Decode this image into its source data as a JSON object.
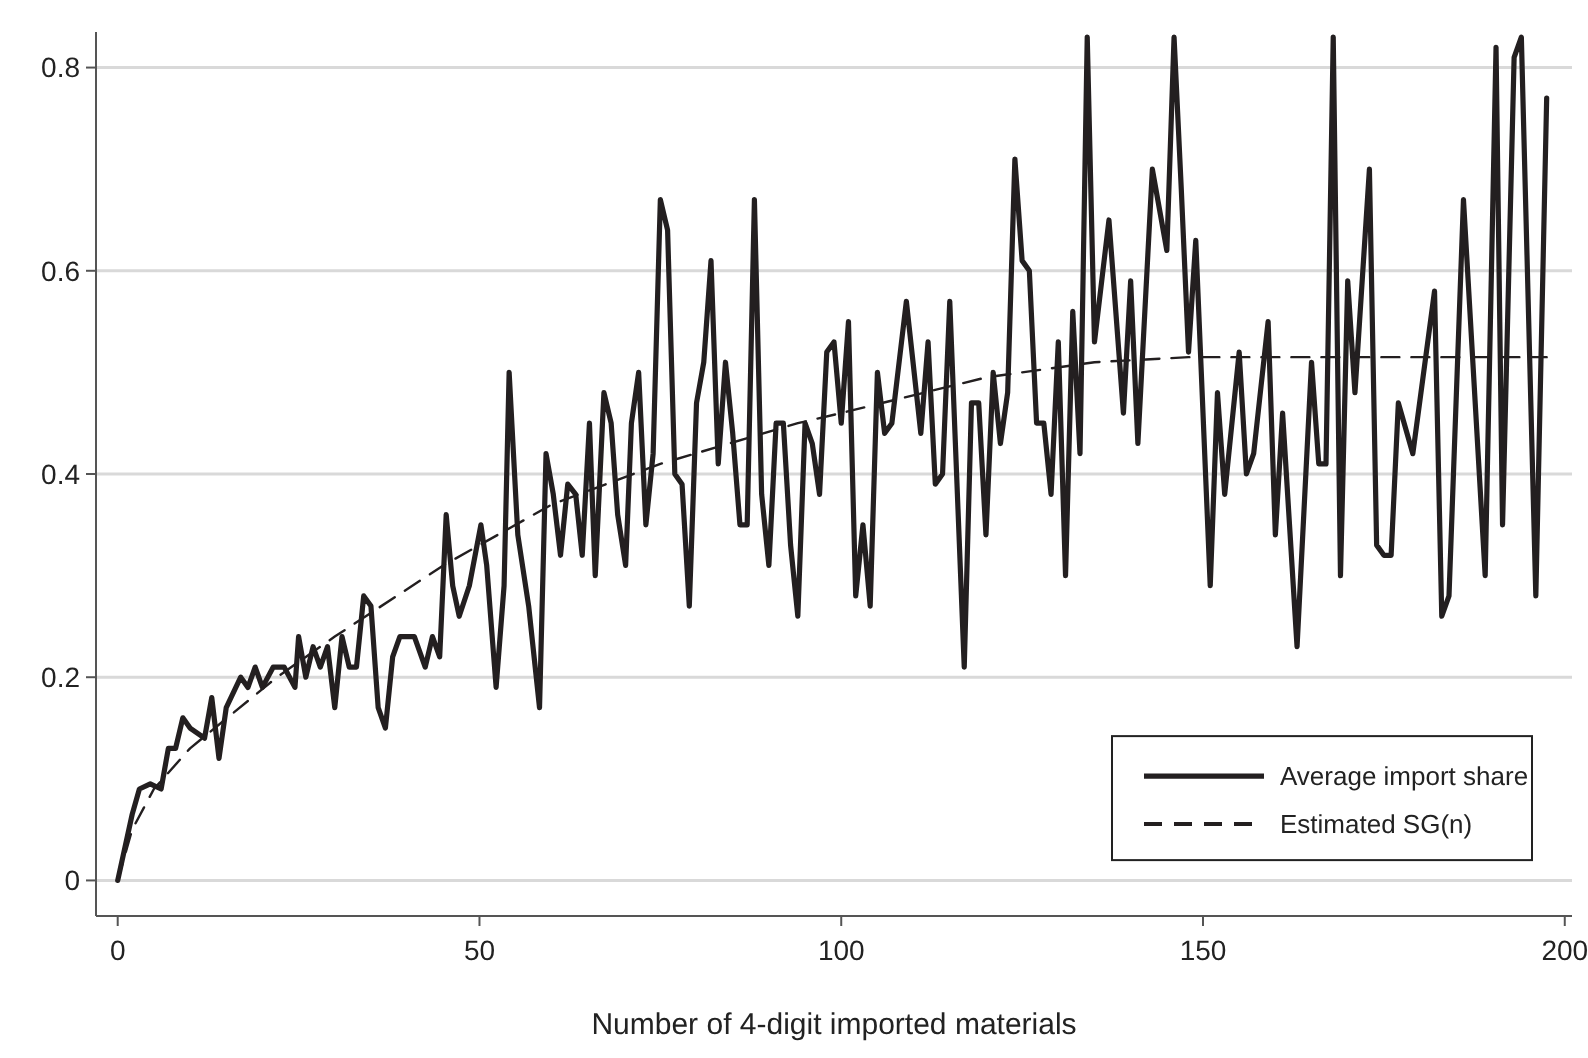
{
  "chart_data": {
    "type": "line",
    "xlabel": "Number of 4-digit imported materials",
    "xlim": [
      -3,
      201
    ],
    "xticks": [
      0,
      50,
      100,
      150,
      200
    ],
    "ylim": [
      -0.035,
      0.835
    ],
    "yticks": [
      0,
      0.2,
      0.4,
      0.6,
      0.8
    ],
    "grid": "y",
    "legend": "bottom right",
    "marker": "none",
    "series": [
      {
        "name": "Average import share",
        "color": "#231f20",
        "line_style": "solid",
        "x": [
          0,
          2,
          3,
          4.5,
          6,
          7,
          8,
          9,
          10,
          12,
          13,
          14,
          15,
          17,
          18,
          19,
          20,
          21.5,
          23,
          24.5,
          25,
          26,
          27,
          28,
          29,
          30,
          31,
          32,
          33,
          34,
          35,
          36,
          37,
          38,
          39,
          41,
          42.5,
          43.5,
          44.5,
          45.4,
          46.3,
          47.2,
          48.6,
          50.2,
          51,
          52.3,
          53.4,
          54.1,
          55.3,
          56.8,
          58.3,
          59.2,
          60.2,
          61.2,
          62.2,
          63.3,
          64.2,
          65.2,
          66,
          67.2,
          68.2,
          69.1,
          70.2,
          71,
          72,
          73,
          74,
          75,
          76,
          77,
          78,
          79,
          80,
          81,
          82,
          83,
          84,
          85,
          86,
          87,
          88,
          89,
          90,
          91,
          92,
          93,
          94,
          95,
          96,
          97,
          98,
          99,
          100,
          101,
          102,
          103,
          104,
          105,
          106,
          107,
          109,
          111,
          112,
          113,
          114,
          115,
          117,
          118,
          119,
          120,
          121,
          122,
          123,
          124,
          125,
          126,
          127,
          128,
          129,
          130,
          131,
          132,
          133,
          134,
          135,
          137,
          139,
          140,
          141,
          143,
          145,
          146,
          147,
          148,
          149,
          151,
          152,
          153,
          155,
          156,
          157,
          159,
          160,
          161,
          163,
          165,
          166,
          167,
          168,
          169,
          170,
          171,
          173,
          174,
          175,
          176,
          177,
          179,
          182,
          183,
          184,
          186,
          189,
          190.5,
          191.4,
          193,
          194,
          196,
          197.5
        ],
        "values": [
          0,
          0.065,
          0.09,
          0.095,
          0.09,
          0.13,
          0.13,
          0.16,
          0.15,
          0.14,
          0.18,
          0.12,
          0.17,
          0.2,
          0.19,
          0.21,
          0.19,
          0.21,
          0.21,
          0.19,
          0.24,
          0.2,
          0.23,
          0.21,
          0.23,
          0.17,
          0.24,
          0.21,
          0.21,
          0.28,
          0.27,
          0.17,
          0.15,
          0.22,
          0.24,
          0.24,
          0.21,
          0.24,
          0.22,
          0.36,
          0.29,
          0.26,
          0.29,
          0.35,
          0.31,
          0.19,
          0.29,
          0.5,
          0.34,
          0.27,
          0.17,
          0.42,
          0.38,
          0.32,
          0.39,
          0.38,
          0.32,
          0.45,
          0.3,
          0.48,
          0.45,
          0.36,
          0.31,
          0.45,
          0.5,
          0.35,
          0.42,
          0.67,
          0.64,
          0.4,
          0.39,
          0.27,
          0.47,
          0.51,
          0.61,
          0.41,
          0.51,
          0.44,
          0.35,
          0.35,
          0.67,
          0.38,
          0.31,
          0.45,
          0.45,
          0.33,
          0.26,
          0.45,
          0.43,
          0.38,
          0.52,
          0.53,
          0.45,
          0.55,
          0.28,
          0.35,
          0.27,
          0.5,
          0.44,
          0.45,
          0.57,
          0.44,
          0.53,
          0.39,
          0.4,
          0.57,
          0.21,
          0.47,
          0.47,
          0.34,
          0.5,
          0.43,
          0.48,
          0.71,
          0.61,
          0.6,
          0.45,
          0.45,
          0.38,
          0.53,
          0.3,
          0.56,
          0.42,
          0.83,
          0.53,
          0.65,
          0.46,
          0.59,
          0.43,
          0.7,
          0.62,
          0.83,
          0.68,
          0.52,
          0.63,
          0.29,
          0.48,
          0.38,
          0.52,
          0.4,
          0.42,
          0.55,
          0.34,
          0.46,
          0.23,
          0.51,
          0.41,
          0.41,
          0.83,
          0.3,
          0.59,
          0.48,
          0.7,
          0.33,
          0.32,
          0.32,
          0.47,
          0.42,
          0.58,
          0.26,
          0.28,
          0.67,
          0.3,
          0.82,
          0.35,
          0.81,
          0.83,
          0.28,
          0.77
        ]
      },
      {
        "name": "Estimated SG(n)",
        "color": "#231f20",
        "line_style": "dashed",
        "x": [
          0,
          2,
          5,
          10,
          22,
          30,
          45,
          60,
          75,
          94,
          100,
          120,
          135,
          148,
          197.5
        ],
        "values": [
          0,
          0.05,
          0.09,
          0.13,
          0.2,
          0.24,
          0.31,
          0.37,
          0.41,
          0.45,
          0.46,
          0.495,
          0.51,
          0.515,
          0.515
        ]
      }
    ]
  }
}
